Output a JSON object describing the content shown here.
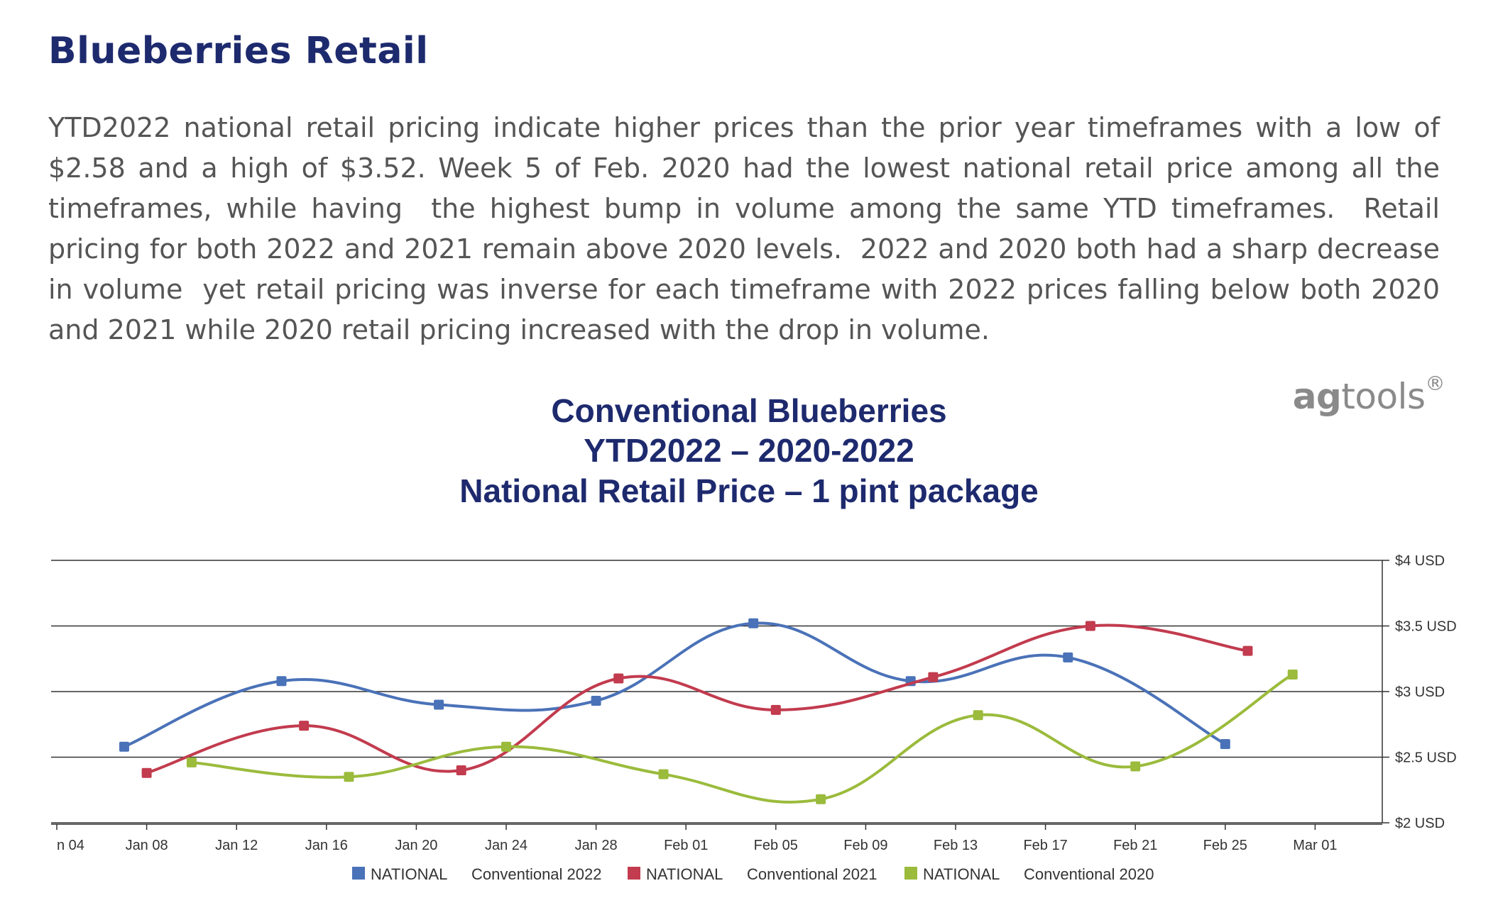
{
  "header": {
    "title": "Blueberries Retail"
  },
  "body": {
    "paragraph": "YTD2022 national retail pricing indicate higher prices than the prior year timeframes with a low of $2.58 and a high of $3.52. Week 5 of Feb. 2020 had the lowest national retail price among all the timeframes, while having  the highest bump in volume among the same YTD timeframes.  Retail pricing for both 2022 and 2021 remain above 2020 levels.  2022 and 2020 both had a sharp decrease in volume  yet retail pricing was inverse for each timeframe with 2022 prices falling below both 2020 and 2021 while 2020 retail pricing increased with the drop in volume."
  },
  "logo": {
    "part1": "ag",
    "part2": "tools",
    "mark": "®"
  },
  "chart_data": {
    "type": "line",
    "title_lines": [
      "Conventional Blueberries",
      "YTD2022 – 2020-2022",
      "National Retail Price – 1 pint package"
    ],
    "xlabel": "",
    "ylabel": "",
    "x_ticks": [
      "n 04",
      "Jan 08",
      "Jan 12",
      "Jan 16",
      "Jan 20",
      "Jan 24",
      "Jan 28",
      "Feb 01",
      "Feb 05",
      "Feb 09",
      "Feb 13",
      "Feb 17",
      "Feb 21",
      "Feb 25",
      "Mar 01"
    ],
    "x_tick_days": [
      4,
      8,
      12,
      16,
      20,
      24,
      28,
      32,
      36,
      40,
      44,
      48,
      52,
      56,
      60
    ],
    "xlim_days": [
      4,
      63
    ],
    "y_ticks": [
      {
        "value": 2,
        "label": "$2 USD"
      },
      {
        "value": 2.5,
        "label": "$2.5 USD"
      },
      {
        "value": 3,
        "label": "$3 USD"
      },
      {
        "value": 3.5,
        "label": "$3.5 USD"
      },
      {
        "value": 4,
        "label": "$4 USD"
      }
    ],
    "ylim": [
      2,
      4
    ],
    "grid": true,
    "legend_position": "bottom-center",
    "series": [
      {
        "name": "NATIONAL",
        "label": "Conventional 2022",
        "color": "#4a72b8",
        "points": [
          {
            "x": "Jan 07",
            "y": 2.58
          },
          {
            "x": "Jan 14",
            "y": 3.08
          },
          {
            "x": "Jan 21",
            "y": 2.9
          },
          {
            "x": "Jan 28",
            "y": 2.93
          },
          {
            "x": "Feb 04",
            "y": 3.52
          },
          {
            "x": "Feb 11",
            "y": 3.08
          },
          {
            "x": "Feb 18",
            "y": 3.26
          },
          {
            "x": "Feb 25",
            "y": 2.6
          }
        ]
      },
      {
        "name": "NATIONAL",
        "label": "Conventional 2021",
        "color": "#c23b4e",
        "points": [
          {
            "x": "Jan 08",
            "y": 2.38
          },
          {
            "x": "Jan 15",
            "y": 2.74
          },
          {
            "x": "Jan 22",
            "y": 2.4
          },
          {
            "x": "Jan 29",
            "y": 3.1
          },
          {
            "x": "Feb 05",
            "y": 2.86
          },
          {
            "x": "Feb 12",
            "y": 3.11
          },
          {
            "x": "Feb 19",
            "y": 3.5
          },
          {
            "x": "Feb 26",
            "y": 3.31
          }
        ]
      },
      {
        "name": "NATIONAL",
        "label": "Conventional 2020",
        "color": "#9bbb3c",
        "points": [
          {
            "x": "Jan 10",
            "y": 2.46
          },
          {
            "x": "Jan 17",
            "y": 2.35
          },
          {
            "x": "Jan 24",
            "y": 2.58
          },
          {
            "x": "Jan 31",
            "y": 2.37
          },
          {
            "x": "Feb 07",
            "y": 2.18
          },
          {
            "x": "Feb 14",
            "y": 2.82
          },
          {
            "x": "Feb 21",
            "y": 2.43
          },
          {
            "x": "Feb 28",
            "y": 3.13
          }
        ]
      }
    ]
  },
  "colors": {
    "title": "#1e2a6e",
    "paragraph": "#555555",
    "logo": "#8a8a8a",
    "grid": "#333333"
  }
}
